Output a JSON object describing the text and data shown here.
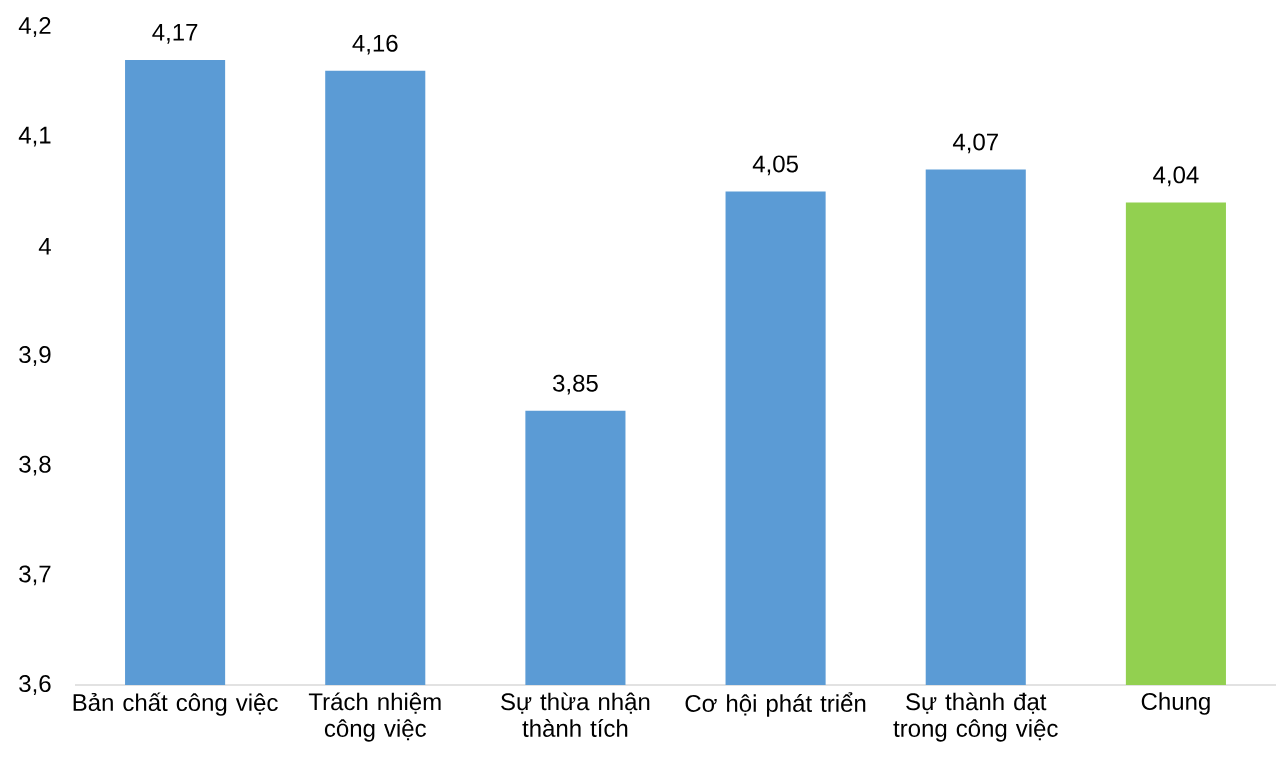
{
  "chart_data": {
    "type": "bar",
    "categories": [
      "Bản chất công việc",
      "Trách nhiệm công việc",
      "Sự thừa nhận thành tích",
      "Cơ hội phát triển",
      "Sự thành đạt trong công việc",
      "Chung"
    ],
    "values": [
      4.17,
      4.16,
      3.85,
      4.05,
      4.07,
      4.04
    ],
    "colors": [
      "#5b9bd5",
      "#5b9bd5",
      "#5b9bd5",
      "#5b9bd5",
      "#5b9bd5",
      "#92d050"
    ],
    "value_labels": [
      "4,17",
      "4,16",
      "3,85",
      "4,05",
      "4,07",
      "4,04"
    ],
    "ylim": [
      3.6,
      4.2
    ],
    "yticks": [
      {
        "value": 3.6,
        "label": "3,6"
      },
      {
        "value": 3.7,
        "label": "3,7"
      },
      {
        "value": 3.8,
        "label": "3,8"
      },
      {
        "value": 3.9,
        "label": "3,9"
      },
      4,
      {
        "value": 4.1,
        "label": "4,1"
      },
      {
        "value": 4.2,
        "label": "4,2"
      }
    ],
    "grid": false
  }
}
